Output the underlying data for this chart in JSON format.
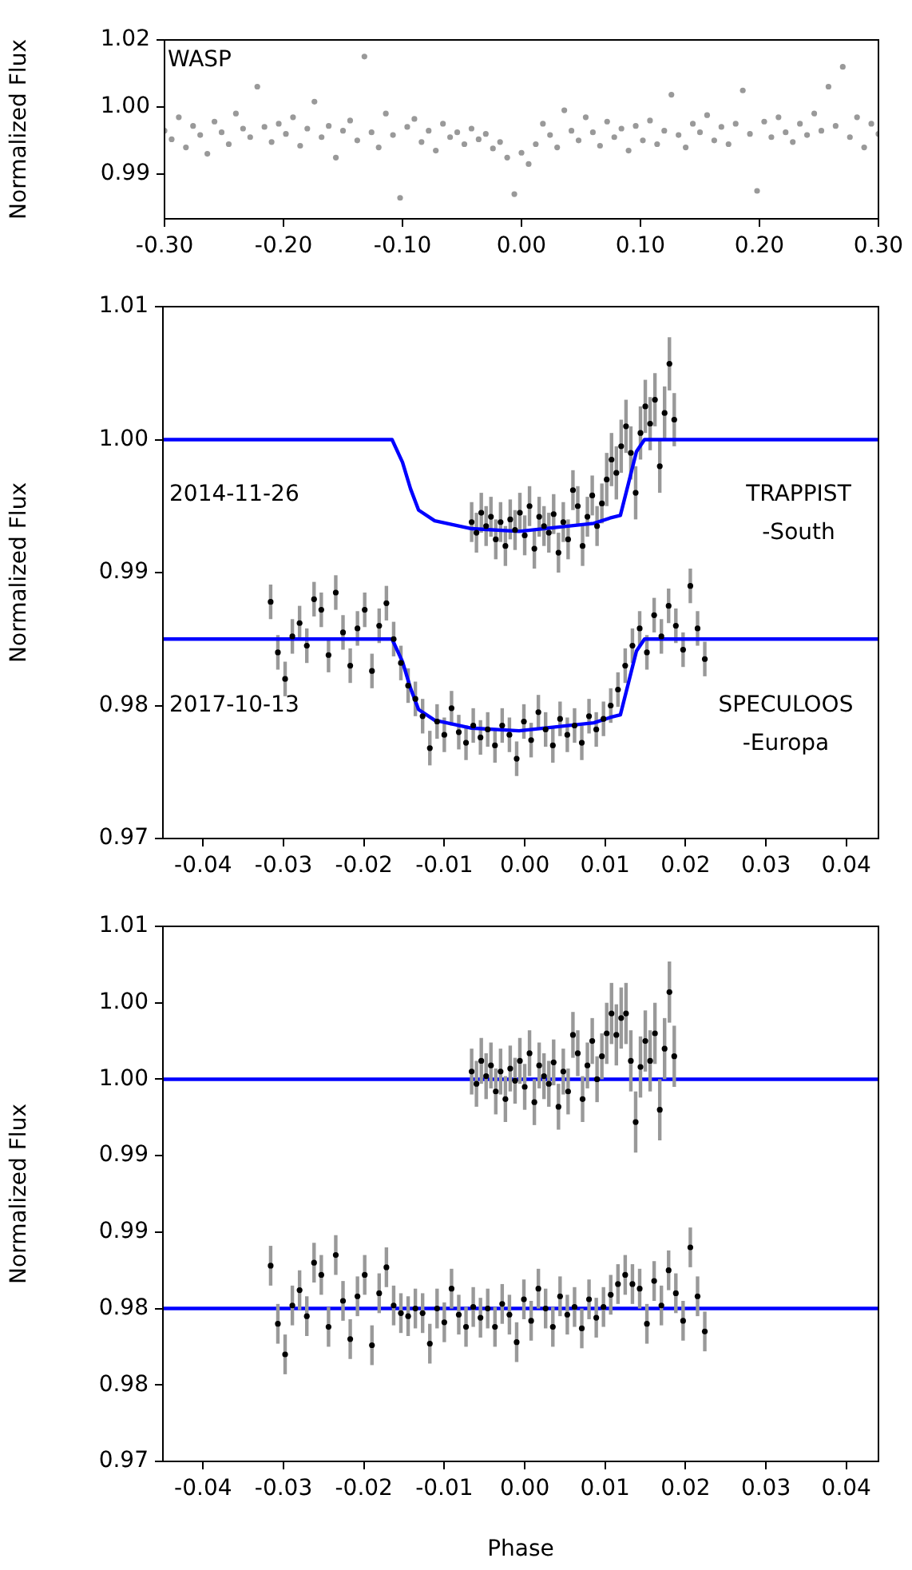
{
  "chart_data": [
    {
      "type": "scatter",
      "ylabel": "Normalized Flux",
      "annotations": [
        "WASP"
      ],
      "marker": "circle",
      "xlim": [
        -0.3,
        0.3
      ],
      "xticks": [
        {
          "value": -0.3,
          "label": "-0.30"
        },
        {
          "value": -0.2,
          "label": "-0.20"
        },
        {
          "value": -0.1,
          "label": "-0.10"
        },
        {
          "value": 0,
          "label": "0.00"
        },
        {
          "value": 0.1,
          "label": "0.10"
        },
        {
          "value": 0.2,
          "label": "0.20"
        },
        {
          "value": 0.3,
          "label": "0.30"
        }
      ],
      "ylim": [
        0.9832,
        1.0165
      ],
      "yticks": [
        {
          "value": 1.0165,
          "label": "1.02"
        },
        {
          "value": 1.004,
          "label": "1.00"
        },
        {
          "value": 0.9915,
          "label": "0.99"
        }
      ],
      "series": [
        {
          "color": "#999999",
          "x": [
            -0.3,
            -0.294,
            -0.288,
            -0.282,
            -0.276,
            -0.27,
            -0.264,
            -0.258,
            -0.252,
            -0.246,
            -0.24,
            -0.234,
            -0.228,
            -0.222,
            -0.216,
            -0.21,
            -0.204,
            -0.198,
            -0.192,
            -0.186,
            -0.18,
            -0.174,
            -0.168,
            -0.162,
            -0.156,
            -0.15,
            -0.144,
            -0.138,
            -0.132,
            -0.126,
            -0.12,
            -0.114,
            -0.108,
            -0.102,
            -0.096,
            -0.09,
            -0.084,
            -0.078,
            -0.072,
            -0.066,
            -0.06,
            -0.054,
            -0.048,
            -0.042,
            -0.036,
            -0.03,
            -0.024,
            -0.018,
            -0.012,
            -0.006,
            0.0,
            0.006,
            0.012,
            0.018,
            0.024,
            0.03,
            0.036,
            0.042,
            0.048,
            0.054,
            0.06,
            0.066,
            0.072,
            0.078,
            0.084,
            0.09,
            0.096,
            0.102,
            0.108,
            0.114,
            0.12,
            0.126,
            0.132,
            0.138,
            0.144,
            0.15,
            0.156,
            0.162,
            0.168,
            0.174,
            0.18,
            0.186,
            0.192,
            0.198,
            0.204,
            0.21,
            0.216,
            0.222,
            0.228,
            0.234,
            0.24,
            0.246,
            0.252,
            0.258,
            0.264,
            0.27,
            0.276,
            0.282,
            0.288,
            0.294,
            0.3
          ],
          "values": [
            0.9996,
            0.998,
            1.0021,
            0.9965,
            1.0005,
            0.9988,
            0.9953,
            1.0013,
            0.9993,
            0.9971,
            1.0028,
            1.0,
            0.9984,
            1.0078,
            1.0003,
            0.9975,
            1.0009,
            0.999,
            1.0021,
            0.9968,
            1.0,
            1.005,
            0.9984,
            1.0005,
            0.9946,
            0.9996,
            1.0015,
            0.9978,
            1.0134,
            0.9993,
            0.9965,
            1.0028,
            0.9988,
            0.9871,
            1.0003,
            1.0018,
            0.9975,
            0.9996,
            0.9959,
            1.0009,
            0.9984,
            0.9993,
            0.9971,
            1.0,
            0.998,
            0.999,
            0.9963,
            0.9975,
            0.9946,
            0.9878,
            0.9955,
            0.9934,
            0.9971,
            1.0009,
            0.9988,
            0.9965,
            1.0034,
            0.9996,
            0.9978,
            1.0021,
            0.9993,
            0.9968,
            1.0013,
            0.9984,
            1.0,
            0.9959,
            1.0005,
            0.9978,
            1.0015,
            0.9971,
            0.9996,
            1.0063,
            0.9988,
            0.9965,
            1.0009,
            0.9993,
            1.0025,
            0.9978,
            1.0003,
            0.9971,
            1.0009,
            1.0071,
            0.999,
            0.9884,
            1.0013,
            0.9984,
            1.0021,
            0.9993,
            0.9975,
            1.0009,
            0.9988,
            1.0028,
            0.9996,
            1.0078,
            1.0005,
            1.0115,
            0.9984,
            1.0021,
            0.9965,
            1.0009,
            0.999
          ]
        }
      ]
    },
    {
      "type": "scatter",
      "ylabel": "Normalized Flux",
      "annotations": [
        "2014-11-26",
        "TRAPPIST\n-South",
        "2017-10-13",
        "SPECULOOS\n-Europa"
      ],
      "marker": "circle",
      "xlim": [
        -0.045,
        0.044
      ],
      "xticks": [
        {
          "value": -0.04,
          "label": "-0.04"
        },
        {
          "value": -0.03,
          "label": "-0.03"
        },
        {
          "value": -0.02,
          "label": "-0.02"
        },
        {
          "value": -0.01,
          "label": "-0.01"
        },
        {
          "value": 0,
          "label": "0.00"
        },
        {
          "value": 0.01,
          "label": "0.01"
        },
        {
          "value": 0.02,
          "label": "0.02"
        },
        {
          "value": 0.03,
          "label": "0.03"
        },
        {
          "value": 0.04,
          "label": "0.04"
        }
      ],
      "ylim": [
        0.97,
        1.01
      ],
      "yticks": [
        {
          "value": 1.01,
          "label": "1.01"
        },
        {
          "value": 1.0,
          "label": "1.00"
        },
        {
          "value": 0.99,
          "label": "0.99"
        },
        {
          "value": 0.98,
          "label": "0.98"
        },
        {
          "value": 0.97,
          "label": "0.97"
        }
      ],
      "series": [
        {
          "color": "#000000",
          "x": [
            -0.0066,
            -0.006,
            -0.0054,
            -0.0048,
            -0.0042,
            -0.0036,
            -0.003,
            -0.0024,
            -0.0018,
            -0.0012,
            -0.0006,
            0.0,
            0.0006,
            0.0012,
            0.0018,
            0.0024,
            0.003,
            0.0036,
            0.0042,
            0.0048,
            0.0054,
            0.006,
            0.0066,
            0.0072,
            0.0078,
            0.0084,
            0.009,
            0.0096,
            0.0102,
            0.0108,
            0.0114,
            0.012,
            0.0126,
            0.0132,
            0.0138,
            0.0144,
            0.015,
            0.0156,
            0.0162,
            0.0168,
            0.0174,
            0.018,
            0.0186
          ],
          "values": [
            0.9938,
            0.993,
            0.9945,
            0.9935,
            0.9942,
            0.9925,
            0.9938,
            0.992,
            0.994,
            0.9932,
            0.9945,
            0.9928,
            0.995,
            0.9918,
            0.9942,
            0.9935,
            0.993,
            0.9944,
            0.9915,
            0.9938,
            0.9925,
            0.9962,
            0.995,
            0.992,
            0.9942,
            0.9958,
            0.9935,
            0.9952,
            0.997,
            0.9985,
            0.9975,
            0.9995,
            1.001,
            0.999,
            0.996,
            1.0005,
            1.0025,
            1.0012,
            1.003,
            0.998,
            1.002,
            1.0057,
            1.0015
          ],
          "errors": [
            0.0015,
            0.0015,
            0.0015,
            0.0015,
            0.0015,
            0.0015,
            0.0015,
            0.0015,
            0.0015,
            0.0015,
            0.0015,
            0.0015,
            0.0015,
            0.0015,
            0.0015,
            0.0015,
            0.0015,
            0.0015,
            0.0015,
            0.0015,
            0.0015,
            0.0015,
            0.0015,
            0.0015,
            0.0015,
            0.0015,
            0.0015,
            0.0015,
            0.002,
            0.002,
            0.002,
            0.002,
            0.002,
            0.002,
            0.002,
            0.002,
            0.002,
            0.002,
            0.002,
            0.002,
            0.002,
            0.002,
            0.002
          ]
        },
        {
          "type": "line",
          "color": "#0000ff",
          "marker": "none",
          "x": [
            -0.045,
            -0.0165,
            -0.0152,
            -0.0142,
            -0.0132,
            -0.0112,
            -0.0066,
            -0.0007,
            0.0086,
            0.0106,
            0.0119,
            0.0129,
            0.0139,
            0.0149,
            0.044
          ],
          "values": [
            1.0,
            1.0,
            0.9983,
            0.9963,
            0.9947,
            0.9939,
            0.9933,
            0.9931,
            0.9937,
            0.9941,
            0.9943,
            0.9967,
            0.9991,
            1.0,
            1.0
          ]
        },
        {
          "color": "#000000",
          "x": [
            -0.0316,
            -0.0307,
            -0.0298,
            -0.0289,
            -0.028,
            -0.0271,
            -0.0262,
            -0.0253,
            -0.0244,
            -0.0235,
            -0.0226,
            -0.0217,
            -0.0208,
            -0.0199,
            -0.019,
            -0.0181,
            -0.0172,
            -0.0163,
            -0.0154,
            -0.0145,
            -0.0136,
            -0.0127,
            -0.0118,
            -0.0109,
            -0.01,
            -0.0091,
            -0.0082,
            -0.0073,
            -0.0064,
            -0.0055,
            -0.0046,
            -0.0037,
            -0.0028,
            -0.0019,
            -0.001,
            -0.0001,
            0.0008,
            0.0017,
            0.0026,
            0.0035,
            0.0044,
            0.0053,
            0.0062,
            0.0071,
            0.008,
            0.0089,
            0.0098,
            0.0107,
            0.0116,
            0.0125,
            0.0134,
            0.0143,
            0.0152,
            0.0161,
            0.017,
            0.0179,
            0.0188,
            0.0197,
            0.0206,
            0.0215,
            0.0224
          ],
          "values": [
            0.9878,
            0.984,
            0.982,
            0.9852,
            0.9862,
            0.9845,
            0.988,
            0.9872,
            0.9838,
            0.9885,
            0.9855,
            0.983,
            0.9858,
            0.9872,
            0.9826,
            0.986,
            0.9877,
            0.985,
            0.9832,
            0.9815,
            0.9805,
            0.9792,
            0.9768,
            0.9788,
            0.9778,
            0.9798,
            0.978,
            0.9772,
            0.9785,
            0.9776,
            0.9782,
            0.977,
            0.9785,
            0.9778,
            0.976,
            0.9788,
            0.9774,
            0.9795,
            0.9782,
            0.977,
            0.979,
            0.9778,
            0.9785,
            0.9772,
            0.9792,
            0.9782,
            0.979,
            0.98,
            0.9812,
            0.983,
            0.9845,
            0.9858,
            0.984,
            0.9868,
            0.9852,
            0.9875,
            0.986,
            0.9842,
            0.989,
            0.9858,
            0.9835
          ],
          "errors": [
            0.0013,
            0.0013,
            0.0013,
            0.0013,
            0.0013,
            0.0013,
            0.0013,
            0.0013,
            0.0013,
            0.0013,
            0.0013,
            0.0013,
            0.0013,
            0.0013,
            0.0013,
            0.0013,
            0.0013,
            0.0013,
            0.0013,
            0.0013,
            0.0013,
            0.0013,
            0.0013,
            0.0013,
            0.0013,
            0.0013,
            0.0013,
            0.0013,
            0.0013,
            0.0013,
            0.0013,
            0.0013,
            0.0013,
            0.0013,
            0.0013,
            0.0013,
            0.0013,
            0.0013,
            0.0013,
            0.0013,
            0.0013,
            0.0013,
            0.0013,
            0.0013,
            0.0013,
            0.0013,
            0.0013,
            0.0013,
            0.0013,
            0.0013,
            0.0013,
            0.0013,
            0.0013,
            0.0013,
            0.0013,
            0.0013,
            0.0013,
            0.0013,
            0.0013,
            0.0013,
            0.0013
          ]
        },
        {
          "type": "line",
          "color": "#0000ff",
          "marker": "none",
          "x": [
            -0.045,
            -0.0165,
            -0.0152,
            -0.0142,
            -0.0132,
            -0.0112,
            -0.0066,
            -0.0007,
            0.0086,
            0.0106,
            0.0119,
            0.0129,
            0.0139,
            0.0149,
            0.044
          ],
          "values": [
            0.985,
            0.985,
            0.9833,
            0.9813,
            0.9797,
            0.9789,
            0.9783,
            0.9781,
            0.9787,
            0.9791,
            0.9793,
            0.9817,
            0.9841,
            0.985,
            0.985
          ]
        }
      ]
    },
    {
      "type": "scatter",
      "ylabel": "Normalized Flux",
      "xlabel": "Phase",
      "marker": "circle",
      "xlim": [
        -0.045,
        0.044
      ],
      "xticks": [
        {
          "value": -0.04,
          "label": "-0.04"
        },
        {
          "value": -0.03,
          "label": "-0.03"
        },
        {
          "value": -0.02,
          "label": "-0.02"
        },
        {
          "value": -0.01,
          "label": "-0.01"
        },
        {
          "value": 0,
          "label": "0.00"
        },
        {
          "value": 0.01,
          "label": "0.01"
        },
        {
          "value": 0.02,
          "label": "0.02"
        },
        {
          "value": 0.03,
          "label": "0.03"
        },
        {
          "value": 0.04,
          "label": "0.04"
        }
      ],
      "ylim": [
        0.975,
        1.01
      ],
      "yticks": [
        {
          "value": 1.01,
          "label": "1.01"
        },
        {
          "value": 1.005,
          "label": "1.00"
        },
        {
          "value": 1.0,
          "label": "1.00"
        },
        {
          "value": 0.995,
          "label": "0.99"
        },
        {
          "value": 0.99,
          "label": "0.99"
        },
        {
          "value": 0.985,
          "label": "0.98"
        },
        {
          "value": 0.98,
          "label": "0.98"
        },
        {
          "value": 0.975,
          "label": "0.97"
        }
      ],
      "ref_lines": [
        {
          "axis": "y",
          "value": 1.0,
          "color": "#0000ff"
        },
        {
          "axis": "y",
          "value": 0.985,
          "color": "#0000ff"
        }
      ],
      "series": [
        {
          "color": "#000000",
          "x": [
            -0.0066,
            -0.006,
            -0.0054,
            -0.0048,
            -0.0042,
            -0.0036,
            -0.003,
            -0.0024,
            -0.0018,
            -0.0012,
            -0.0006,
            0.0,
            0.0006,
            0.0012,
            0.0018,
            0.0024,
            0.003,
            0.0036,
            0.0042,
            0.0048,
            0.0054,
            0.006,
            0.0066,
            0.0072,
            0.0078,
            0.0084,
            0.009,
            0.0096,
            0.0102,
            0.0108,
            0.0114,
            0.012,
            0.0126,
            0.0132,
            0.0138,
            0.0144,
            0.015,
            0.0156,
            0.0162,
            0.0168,
            0.0174,
            0.018,
            0.0186
          ],
          "values": [
            1.0005,
            0.9997,
            1.0012,
            1.0002,
            1.0009,
            0.9992,
            1.0005,
            0.9987,
            1.0007,
            0.9999,
            1.0012,
            0.9995,
            1.0017,
            0.9985,
            1.0009,
            1.0002,
            0.9997,
            1.0011,
            0.9982,
            1.0005,
            0.9992,
            1.0029,
            1.0017,
            0.9987,
            1.0009,
            1.0025,
            1.0,
            1.0015,
            1.003,
            1.0043,
            1.0029,
            1.004,
            1.0043,
            1.0012,
            0.9972,
            1.0008,
            1.0025,
            1.0012,
            1.003,
            0.998,
            1.002,
            1.0057,
            1.0015
          ],
          "errors": [
            0.0015,
            0.0015,
            0.0015,
            0.0015,
            0.0015,
            0.0015,
            0.0015,
            0.0015,
            0.0015,
            0.0015,
            0.0015,
            0.0015,
            0.0015,
            0.0015,
            0.0015,
            0.0015,
            0.0015,
            0.0015,
            0.0015,
            0.0015,
            0.0015,
            0.0015,
            0.0015,
            0.0015,
            0.0015,
            0.0015,
            0.0015,
            0.0015,
            0.002,
            0.002,
            0.002,
            0.002,
            0.002,
            0.002,
            0.002,
            0.002,
            0.002,
            0.002,
            0.002,
            0.002,
            0.002,
            0.002,
            0.002
          ]
        },
        {
          "color": "#000000",
          "x": [
            -0.0316,
            -0.0307,
            -0.0298,
            -0.0289,
            -0.028,
            -0.0271,
            -0.0262,
            -0.0253,
            -0.0244,
            -0.0235,
            -0.0226,
            -0.0217,
            -0.0208,
            -0.0199,
            -0.019,
            -0.0181,
            -0.0172,
            -0.0163,
            -0.0154,
            -0.0145,
            -0.0136,
            -0.0127,
            -0.0118,
            -0.0109,
            -0.01,
            -0.0091,
            -0.0082,
            -0.0073,
            -0.0064,
            -0.0055,
            -0.0046,
            -0.0037,
            -0.0028,
            -0.0019,
            -0.001,
            -0.0001,
            0.0008,
            0.0017,
            0.0026,
            0.0035,
            0.0044,
            0.0053,
            0.0062,
            0.0071,
            0.008,
            0.0089,
            0.0098,
            0.0107,
            0.0116,
            0.0125,
            0.0134,
            0.0143,
            0.0152,
            0.0161,
            0.017,
            0.0179,
            0.0188,
            0.0197,
            0.0206,
            0.0215,
            0.0224
          ],
          "values": [
            0.9878,
            0.984,
            0.982,
            0.9852,
            0.9862,
            0.9845,
            0.988,
            0.9872,
            0.9838,
            0.9885,
            0.9855,
            0.983,
            0.9858,
            0.9872,
            0.9826,
            0.986,
            0.9877,
            0.9852,
            0.9847,
            0.9845,
            0.985,
            0.9847,
            0.9827,
            0.985,
            0.9841,
            0.9863,
            0.9846,
            0.9838,
            0.9851,
            0.9844,
            0.985,
            0.9838,
            0.9853,
            0.9846,
            0.9828,
            0.9856,
            0.9842,
            0.9863,
            0.985,
            0.9838,
            0.9858,
            0.9846,
            0.9851,
            0.9837,
            0.9856,
            0.9844,
            0.9851,
            0.9859,
            0.9866,
            0.9872,
            0.9866,
            0.9863,
            0.984,
            0.9868,
            0.9852,
            0.9875,
            0.986,
            0.9842,
            0.989,
            0.9858,
            0.9835
          ],
          "errors": [
            0.0013,
            0.0013,
            0.0013,
            0.0013,
            0.0013,
            0.0013,
            0.0013,
            0.0013,
            0.0013,
            0.0013,
            0.0013,
            0.0013,
            0.0013,
            0.0013,
            0.0013,
            0.0013,
            0.0013,
            0.0013,
            0.0013,
            0.0013,
            0.0013,
            0.0013,
            0.0013,
            0.0013,
            0.0013,
            0.0013,
            0.0013,
            0.0013,
            0.0013,
            0.0013,
            0.0013,
            0.0013,
            0.0013,
            0.0013,
            0.0013,
            0.0013,
            0.0013,
            0.0013,
            0.0013,
            0.0013,
            0.0013,
            0.0013,
            0.0013,
            0.0013,
            0.0013,
            0.0013,
            0.0013,
            0.0013,
            0.0013,
            0.0013,
            0.0013,
            0.0013,
            0.0013,
            0.0013,
            0.0013,
            0.0013,
            0.0013,
            0.0013,
            0.0013,
            0.0013,
            0.0013
          ]
        }
      ]
    }
  ]
}
